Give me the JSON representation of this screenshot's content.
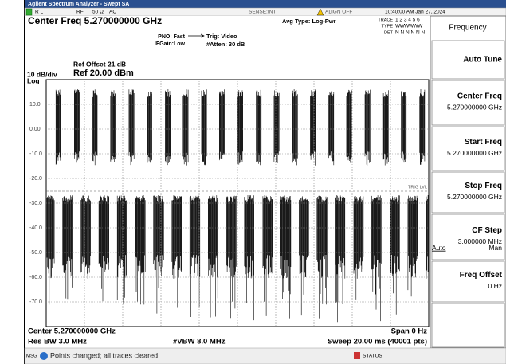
{
  "title_bar": "Agilent Spectrum Analyzer - Swept SA",
  "status_bar": {
    "rl": "R L",
    "rf": "RF",
    "impedance": "50 Ω",
    "coupling": "AC",
    "sense": "SENSE:INT",
    "align": "ALIGN OFF",
    "datetime": "10:40:00 AM Jan 27, 2024"
  },
  "header": {
    "center_freq": "Center Freq 5.270000000 GHz",
    "pno": "PNO: Fast",
    "ifgain": "IFGain:Low",
    "trig": "Trig: Video",
    "atten": "#Atten: 30 dB",
    "avg_type": "Avg Type: Log-Pwr",
    "trace_label": "TRACE",
    "trace_nums": "1 2 3 4 5 6",
    "type_label": "TYPE",
    "type_val": "WWWWWW",
    "det_label": "DET",
    "det_val": "N N N N N N"
  },
  "plot": {
    "ref_offset": "Ref Offset 21 dB",
    "scale": "10 dB/div",
    "ref_level": "Ref 20.00 dBm",
    "log": "Log",
    "y_labels": [
      "10.0",
      "0.00",
      "-10.0",
      "-20.0",
      "-30.0",
      "-40.0",
      "-50.0",
      "-60.0",
      "-70.0"
    ],
    "trig_lvl": "TRIG LVL"
  },
  "footer": {
    "center": "Center 5.270000000 GHz",
    "span": "Span 0 Hz",
    "res_bw": "Res BW 3.0 MHz",
    "vbw": "#VBW 8.0 MHz",
    "sweep": "Sweep  20.00 ms (40001 pts)"
  },
  "message_bar": {
    "msg": "MSG",
    "text": "Points changed; all traces cleared",
    "status": "STATUS"
  },
  "softkeys": {
    "menu": "Frequency",
    "keys": [
      {
        "label": "Auto Tune"
      },
      {
        "label": "Center Freq",
        "value": "5.270000000 GHz"
      },
      {
        "label": "Start Freq",
        "value": "5.270000000 GHz"
      },
      {
        "label": "Stop Freq",
        "value": "5.270000000 GHz"
      },
      {
        "label": "CF Step",
        "value": "3.000000 MHz",
        "options": [
          "Auto",
          "Man"
        ]
      },
      {
        "label": "Freq Offset",
        "value": "0 Hz"
      }
    ]
  }
}
